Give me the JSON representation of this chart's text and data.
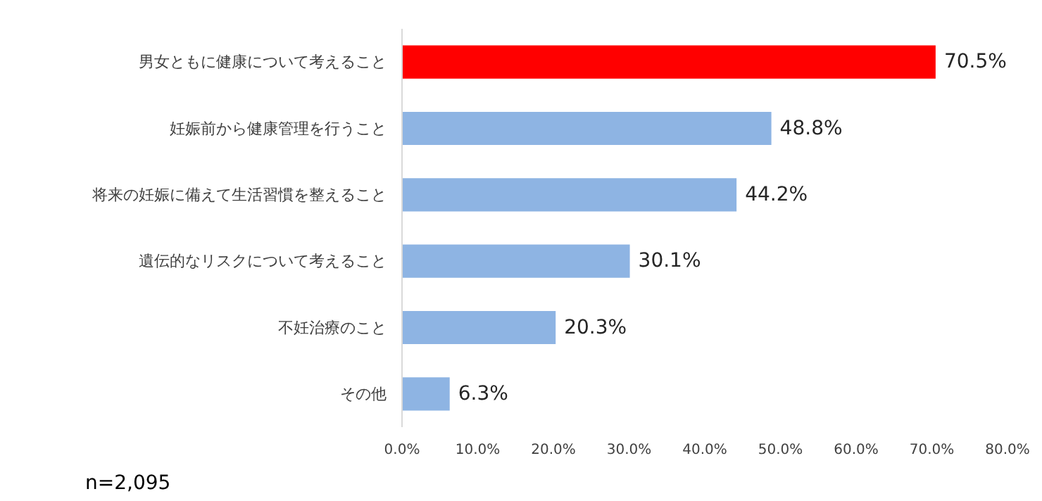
{
  "chart_data": {
    "type": "bar",
    "orientation": "horizontal",
    "categories": [
      "男女ともに健康について考えること",
      "妊娠前から健康管理を行うこと",
      "将来の妊娠に備えて生活習慣を整えること",
      "遺伝的なリスクについて考えること",
      "不妊治療のこと",
      "その他"
    ],
    "values": [
      70.5,
      48.8,
      44.2,
      30.1,
      20.3,
      6.3
    ],
    "colors": [
      "#ff0000",
      "#8eb4e3",
      "#8eb4e3",
      "#8eb4e3",
      "#8eb4e3",
      "#8eb4e3"
    ],
    "value_labels": [
      "70.5%",
      "48.8%",
      "44.2%",
      "30.1%",
      "20.3%",
      "6.3%"
    ],
    "xlim": [
      0,
      80
    ],
    "xticks": [
      {
        "value": 0,
        "label": "0.0%"
      },
      {
        "value": 10,
        "label": "10.0%"
      },
      {
        "value": 20,
        "label": "20.0%"
      },
      {
        "value": 30,
        "label": "30.0%"
      },
      {
        "value": 40,
        "label": "40.0%"
      },
      {
        "value": 50,
        "label": "50.0%"
      },
      {
        "value": 60,
        "label": "60.0%"
      },
      {
        "value": 70,
        "label": "70.0%"
      },
      {
        "value": 80,
        "label": "80.0%"
      }
    ],
    "annotations": [
      "n=2,095"
    ]
  }
}
